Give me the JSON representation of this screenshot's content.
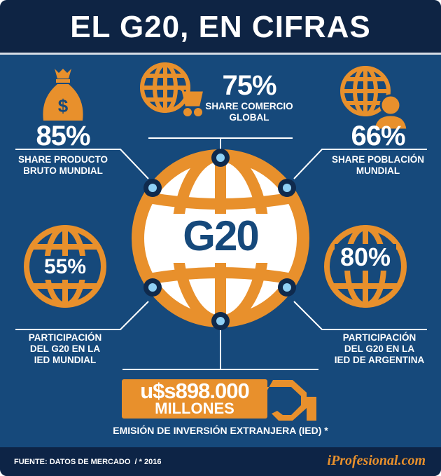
{
  "title": "EL G20, EN CIFRAS",
  "colors": {
    "background": "#16497b",
    "accent": "#e8902c",
    "title_bar": "#0e2444",
    "node_dot": "#8fd0f5"
  },
  "center": {
    "label": "G20"
  },
  "stats": [
    {
      "value": "85%",
      "label_lines": [
        "SHARE PRODUCTO",
        "BRUTO MUNDIAL"
      ],
      "icon": "money-bag-icon"
    },
    {
      "value": "75%",
      "label_lines": [
        "SHARE COMERCIO",
        "GLOBAL"
      ],
      "icon": "globe-cart-icon"
    },
    {
      "value": "66%",
      "label_lines": [
        "SHARE POBLACIÓN",
        "MUNDIAL"
      ],
      "icon": "globe-person-icon"
    },
    {
      "value": "55%",
      "label_lines": [
        "PARTICIPACIÓN",
        "DEL G20 EN LA",
        "IED MUNDIAL"
      ],
      "icon": "globe-icon"
    },
    {
      "value": "80%",
      "label_lines": [
        "PARTICIPACIÓN",
        "DEL G20 EN LA",
        "IED DE ARGENTINA"
      ],
      "icon": "globe-icon"
    }
  ],
  "investment": {
    "amount": "u$s898.000",
    "unit": "MILLONES",
    "label": "EMISIÓN DE INVERSIÓN EXTRANJERA (IED) *",
    "icon": "plug-icon"
  },
  "footer": {
    "source": "FUENTE: DATOS DE MERCADO  / * 2016",
    "brand": "iProfesional.com"
  }
}
